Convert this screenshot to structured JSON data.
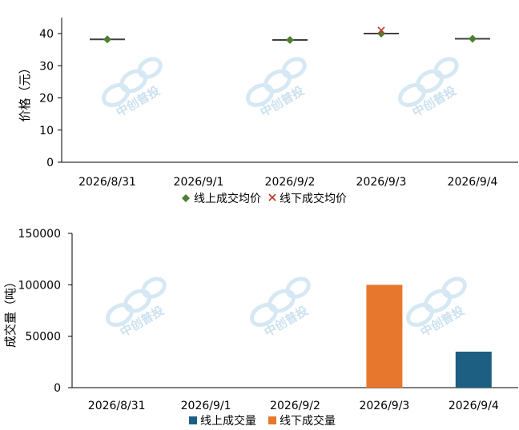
{
  "chart_data": [
    {
      "type": "scatter",
      "ylabel": "价格（元）",
      "categories": [
        "2026/8/31",
        "2026/9/1",
        "2026/9/2",
        "2026/9/3",
        "2026/9/4"
      ],
      "ylim": [
        0,
        40
      ],
      "yticks": [
        "0",
        "10",
        "20",
        "30",
        "40"
      ],
      "series": [
        {
          "name": "线上成交均价",
          "marker": "diamond",
          "color": "#4e7f2e",
          "values": [
            38.2,
            null,
            38.0,
            40.0,
            38.4
          ]
        },
        {
          "name": "线下成交均价",
          "marker": "x",
          "color": "#c0392b",
          "values": [
            null,
            null,
            null,
            41.0,
            null
          ]
        }
      ],
      "legend": "bottom"
    },
    {
      "type": "bar",
      "ylabel": "成交量（吨）",
      "categories": [
        "2026/8/31",
        "2026/9/1",
        "2026/9/2",
        "2026/9/3",
        "2026/9/4"
      ],
      "ylim": [
        0,
        150000
      ],
      "yticks": [
        "0",
        "50000",
        "100000",
        "150000"
      ],
      "series": [
        {
          "name": "线上成交量",
          "color": "#1d5f82",
          "values": [
            0,
            0,
            0,
            0,
            35000
          ]
        },
        {
          "name": "线下成交量",
          "color": "#e8772e",
          "values": [
            0,
            0,
            0,
            100000,
            0
          ]
        }
      ],
      "legend": "bottom"
    }
  ],
  "watermark": {
    "text": "中创普投"
  }
}
